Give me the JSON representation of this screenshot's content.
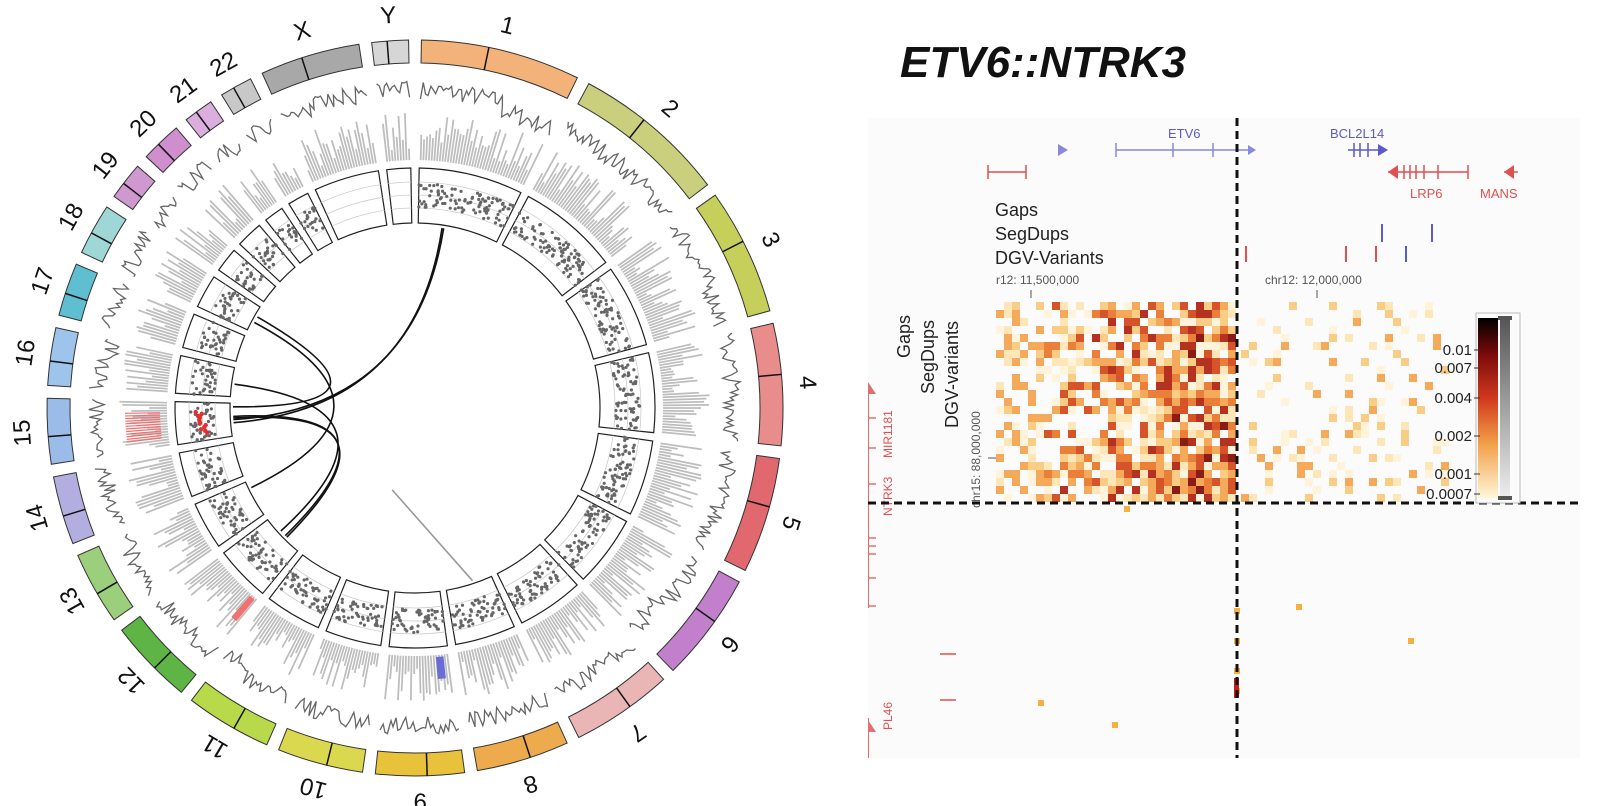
{
  "circos": {
    "chromosomes": [
      "1",
      "2",
      "3",
      "4",
      "5",
      "6",
      "7",
      "8",
      "9",
      "10",
      "11",
      "12",
      "13",
      "14",
      "15",
      "16",
      "17",
      "18",
      "19",
      "20",
      "21",
      "22",
      "X",
      "Y"
    ],
    "colors": [
      "#f2b27a",
      "#c9cf7c",
      "#c5cf5a",
      "#e88c8c",
      "#e0686e",
      "#c27fcb",
      "#eab5b5",
      "#eeab4d",
      "#e8c23a",
      "#d9d84f",
      "#b8d94a",
      "#5fb446",
      "#9ccf7c",
      "#b3aee0",
      "#9bbbe8",
      "#9ec4ec",
      "#5fbed0",
      "#9fd6d6",
      "#cf99cf",
      "#cf8fcf",
      "#dbaede",
      "#c8c8c8",
      "#a8a8a8",
      "#d6d6d6"
    ]
  },
  "hic": {
    "title": "ETV6::NTRK3",
    "genes_top": {
      "etv6": "ETV6",
      "bcl2l14": "BCL2L14",
      "lrp6": "LRP6",
      "mans": "MANS"
    },
    "track_labels_top": [
      "Gaps",
      "SegDups",
      "DGV-Variants"
    ],
    "track_labels_left": [
      "Gaps",
      "SegDups",
      "DGV-variants"
    ],
    "coord_top_1": "r12: 11,500,000",
    "coord_top_2": "chr12: 12,000,000",
    "coord_left": "chr15: 88,000,000",
    "genes_left": {
      "mir": "MIR1181",
      "ntrk3": "NTRK3",
      "pl46": "PL46"
    },
    "scale_ticks": [
      "0.01",
      "0.007",
      "0.004",
      "0.002",
      "0.001",
      "0.0007"
    ],
    "colors": {
      "gene_blue": "#5a5ac8",
      "gene_red": "#e05050"
    }
  }
}
